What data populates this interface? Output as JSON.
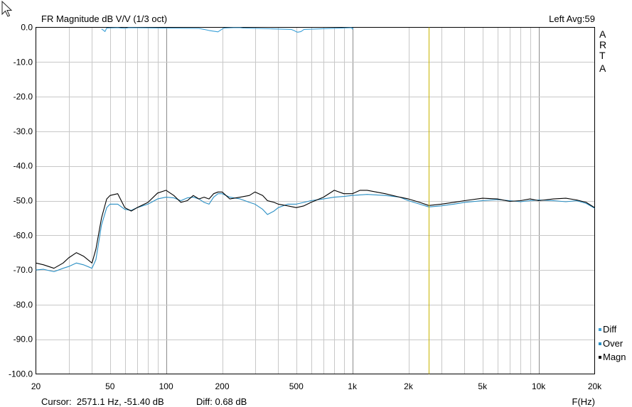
{
  "chart_data": {
    "type": "line",
    "title": "FR Magnitude dB V/V (1/3 oct)",
    "channel_info": "Left  Avg:59",
    "side_label": [
      "A",
      "R",
      "T",
      "A"
    ],
    "xlabel": "F(Hz)",
    "x_scale": "log",
    "xlim": [
      20,
      20000
    ],
    "ylim": [
      -100,
      0
    ],
    "y_ticks": [
      "0.0",
      "-10.0",
      "-20.0",
      "-30.0",
      "-40.0",
      "-50.0",
      "-60.0",
      "-70.0",
      "-80.0",
      "-90.0",
      "-100.0"
    ],
    "x_ticks": [
      {
        "value": 20,
        "label": "20"
      },
      {
        "value": 50,
        "label": "50"
      },
      {
        "value": 100,
        "label": "100"
      },
      {
        "value": 200,
        "label": "200"
      },
      {
        "value": 500,
        "label": "500"
      },
      {
        "value": 1000,
        "label": "1k"
      },
      {
        "value": 2000,
        "label": "2k"
      },
      {
        "value": 5000,
        "label": "5k"
      },
      {
        "value": 10000,
        "label": "10k"
      },
      {
        "value": 20000,
        "label": "20k"
      }
    ],
    "grid": true,
    "legend_position": "bottom-right",
    "cursor_freq": 2571.1,
    "cursor_text": "Cursor:  2571.1 Hz, -51.40 dB",
    "diff_text": "Diff: 0.68 dB",
    "colors": {
      "magn": "#000000",
      "over": "#2a8fc4",
      "diff": "#3aa0d8",
      "cursor": "#c8b400",
      "grid_minor": "#c8c8c8",
      "grid_major": "#8c8c8c"
    },
    "series": [
      {
        "name": "Diff",
        "x": [
          45,
          46,
          47,
          48,
          55,
          60,
          63,
          150,
          160,
          170,
          180,
          190,
          200,
          205,
          230,
          250,
          260,
          470,
          490,
          500,
          510,
          530,
          550,
          990,
          1000,
          1010
        ],
        "y": [
          -0.5,
          -0.8,
          -1.2,
          -0.2,
          -0.1,
          -0.3,
          -0.1,
          -0.3,
          -0.6,
          -0.9,
          -1.1,
          -1.3,
          -0.5,
          -0.2,
          -0.1,
          -0.1,
          -0.2,
          -0.6,
          -1.0,
          -1.3,
          -1.4,
          -1.2,
          -0.6,
          -0.1,
          -0.5,
          -0.1
        ]
      },
      {
        "name": "Over",
        "x": [
          20,
          22,
          25,
          28,
          30,
          33,
          36,
          40,
          42,
          45,
          48,
          50,
          55,
          60,
          65,
          70,
          80,
          90,
          100,
          110,
          120,
          130,
          140,
          150,
          160,
          170,
          180,
          190,
          200,
          220,
          250,
          280,
          300,
          330,
          350,
          380,
          400,
          450,
          500,
          550,
          600,
          700,
          800,
          900,
          1000,
          1200,
          1500,
          1800,
          2000,
          2300,
          2571,
          3000,
          3500,
          4000,
          5000,
          6000,
          7000,
          8000,
          9000,
          10000,
          12000,
          14000,
          16000,
          18000,
          20000
        ],
        "y": [
          -70.0,
          -69.8,
          -70.5,
          -69.5,
          -69.0,
          -68.0,
          -68.5,
          -69.5,
          -67.0,
          -57.0,
          -52.0,
          -51.0,
          -51.0,
          -52.5,
          -52.8,
          -52.0,
          -51.0,
          -49.5,
          -49.0,
          -49.2,
          -50.0,
          -49.2,
          -49.0,
          -49.5,
          -50.5,
          -51.0,
          -49.0,
          -48.0,
          -48.0,
          -49.0,
          -49.5,
          -50.5,
          -51.0,
          -52.5,
          -54.0,
          -53.0,
          -52.0,
          -51.0,
          -51.0,
          -50.5,
          -50.0,
          -49.5,
          -49.0,
          -48.8,
          -48.5,
          -48.2,
          -48.5,
          -49.0,
          -50.0,
          -51.0,
          -51.8,
          -51.5,
          -51.0,
          -50.5,
          -50.0,
          -49.7,
          -50.0,
          -50.3,
          -50.0,
          -49.8,
          -50.0,
          -50.3,
          -50.0,
          -50.8,
          -52.2
        ]
      },
      {
        "name": "Magn",
        "x": [
          20,
          22,
          25,
          28,
          30,
          33,
          36,
          40,
          42,
          45,
          48,
          50,
          55,
          60,
          65,
          70,
          80,
          90,
          100,
          110,
          120,
          130,
          140,
          150,
          160,
          170,
          180,
          190,
          200,
          220,
          250,
          280,
          300,
          330,
          350,
          380,
          400,
          450,
          500,
          550,
          600,
          700,
          800,
          900,
          1000,
          1100,
          1200,
          1500,
          1800,
          2000,
          2300,
          2571,
          3000,
          3500,
          4000,
          5000,
          6000,
          7000,
          8000,
          9000,
          10000,
          12000,
          14000,
          16000,
          18000,
          20000
        ],
        "y": [
          -68.0,
          -68.5,
          -69.5,
          -68.0,
          -66.5,
          -65.0,
          -66.0,
          -68.0,
          -64.0,
          -55.0,
          -49.5,
          -48.5,
          -48.0,
          -52.0,
          -53.0,
          -52.0,
          -50.5,
          -47.8,
          -47.0,
          -48.5,
          -50.5,
          -50.0,
          -48.5,
          -49.5,
          -49.0,
          -49.5,
          -48.0,
          -47.5,
          -47.5,
          -49.5,
          -49.0,
          -48.5,
          -47.5,
          -48.5,
          -50.0,
          -50.5,
          -51.0,
          -51.5,
          -52.0,
          -51.5,
          -50.5,
          -49.0,
          -47.0,
          -48.0,
          -48.0,
          -47.0,
          -47.0,
          -48.0,
          -49.0,
          -49.5,
          -50.5,
          -51.4,
          -51.0,
          -50.5,
          -50.0,
          -49.3,
          -49.5,
          -50.2,
          -50.0,
          -49.5,
          -50.0,
          -49.5,
          -49.3,
          -49.8,
          -50.5,
          -52.0
        ]
      }
    ]
  }
}
